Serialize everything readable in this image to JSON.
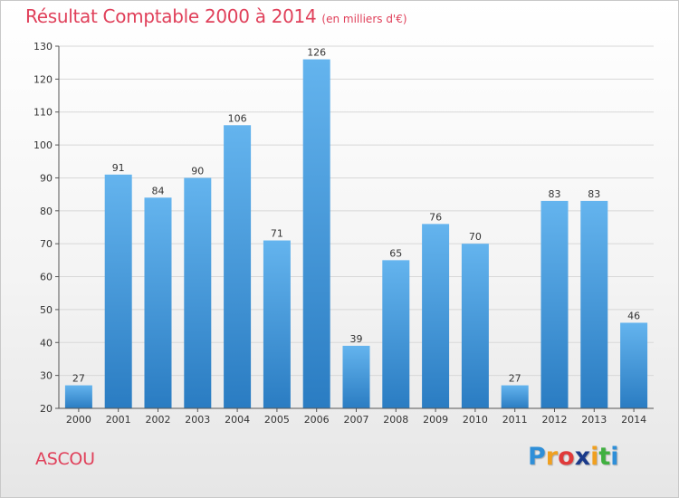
{
  "title": "Résultat Comptable 2000 à 2014",
  "subtitle": "(en milliers d'€)",
  "commune": "ASCOU",
  "logo": {
    "letters": [
      "P",
      "r",
      "o",
      "x",
      "i",
      "t",
      "i"
    ],
    "colors": [
      "#2f8fd8",
      "#f0a020",
      "#e03a3a",
      "#1a3a8a",
      "#f0a020",
      "#40b040",
      "#2f8fd8"
    ]
  },
  "colors": {
    "accent": "#e0405a",
    "bar_top": "#64b4ee",
    "bar_bottom": "#2a7cc2",
    "axis": "#555555",
    "grid": "#d8d8d8"
  },
  "chart_data": {
    "type": "bar",
    "categories": [
      "2000",
      "2001",
      "2002",
      "2003",
      "2004",
      "2005",
      "2006",
      "2007",
      "2008",
      "2009",
      "2010",
      "2011",
      "2012",
      "2013",
      "2014"
    ],
    "values": [
      27,
      91,
      84,
      90,
      106,
      71,
      126,
      39,
      65,
      76,
      70,
      27,
      83,
      83,
      46
    ],
    "yticks": [
      20,
      30,
      40,
      50,
      60,
      70,
      80,
      90,
      100,
      110,
      120,
      130
    ],
    "ylim": [
      20,
      130
    ],
    "grid": true,
    "data_labels": true
  }
}
